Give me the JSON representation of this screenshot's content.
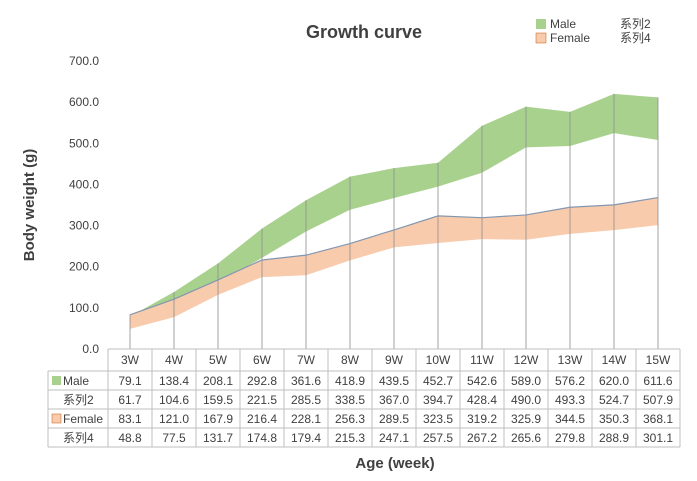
{
  "chart_data": {
    "type": "area",
    "title": "Growth curve",
    "xlabel": "Age (week)",
    "ylabel": "Body weight (g)",
    "ylim": [
      0,
      700
    ],
    "y_ticks": [
      "0.0",
      "100.0",
      "200.0",
      "300.0",
      "400.0",
      "500.0",
      "600.0",
      "700.0"
    ],
    "categories": [
      "3W",
      "4W",
      "5W",
      "6W",
      "7W",
      "8W",
      "9W",
      "10W",
      "11W",
      "12W",
      "13W",
      "14W",
      "15W"
    ],
    "grid": "vertical",
    "legend": "top-right",
    "series": [
      {
        "name": "Male",
        "color": "#a9d18e",
        "values": [
          79.1,
          138.4,
          208.1,
          292.8,
          361.6,
          418.9,
          439.5,
          452.7,
          542.6,
          589.0,
          576.2,
          620.0,
          611.6
        ]
      },
      {
        "name": "系列2",
        "color": "#ffffff",
        "values": [
          61.7,
          104.6,
          159.5,
          221.5,
          285.5,
          338.5,
          367.0,
          394.7,
          428.4,
          490.0,
          493.3,
          524.7,
          507.9
        ]
      },
      {
        "name": "Female",
        "color": "#f8cbad",
        "values": [
          83.1,
          121.0,
          167.9,
          216.4,
          228.1,
          256.3,
          289.5,
          323.5,
          319.2,
          325.9,
          344.5,
          350.3,
          368.1
        ]
      },
      {
        "name": "系列4",
        "color": "#ffffff",
        "values": [
          48.8,
          77.5,
          131.7,
          174.8,
          179.4,
          215.3,
          247.1,
          257.5,
          267.2,
          265.6,
          279.8,
          288.9,
          301.1
        ]
      }
    ]
  }
}
